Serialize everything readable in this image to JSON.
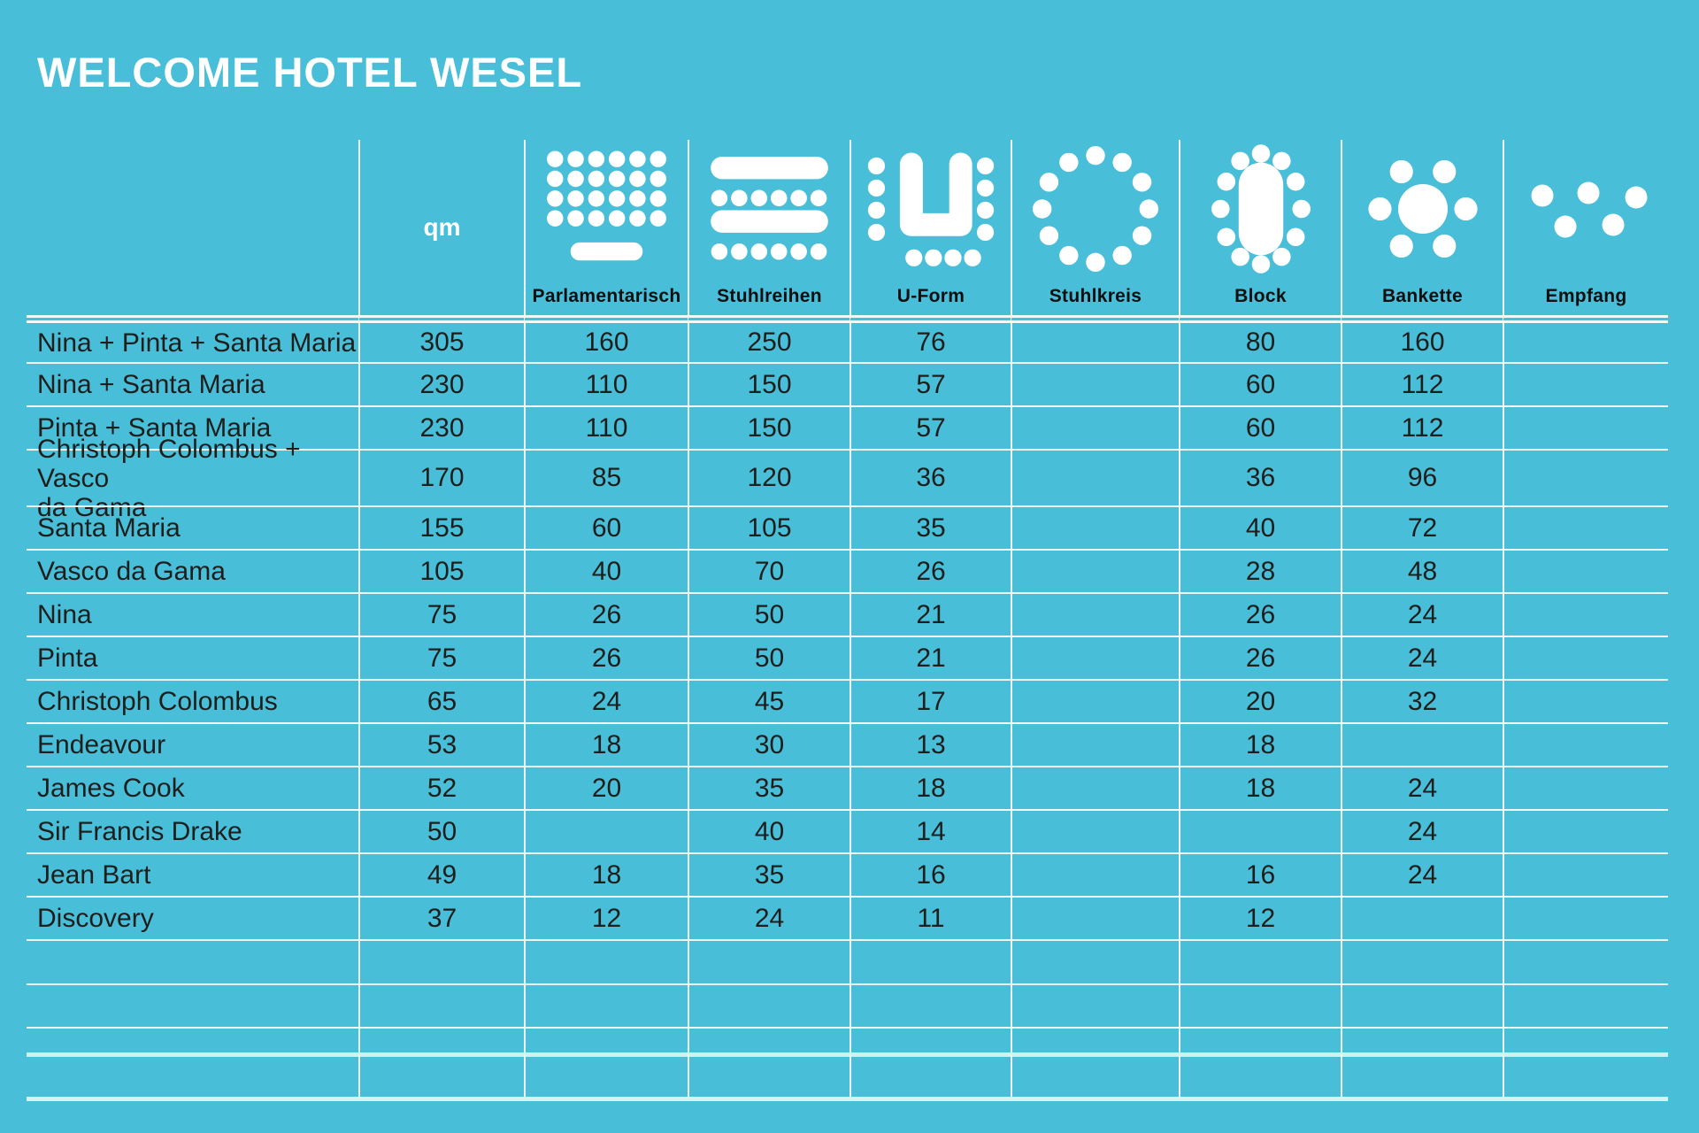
{
  "title": "WELCOME HOTEL WESEL",
  "colors": {
    "background": "#49BED8",
    "title": "#FFFFFF",
    "text": "#1E1E1C",
    "grid_line": "#FFFFFF"
  },
  "header": {
    "qm_label": "qm",
    "columns": [
      {
        "key": "parlamentarisch",
        "label": "Parlamentarisch",
        "icon": "parliamentary-seating-icon"
      },
      {
        "key": "stuhlreihen",
        "label": "Stuhlreihen",
        "icon": "chair-rows-icon"
      },
      {
        "key": "uform",
        "label": "U-Form",
        "icon": "u-shape-seating-icon"
      },
      {
        "key": "stuhlkreis",
        "label": "Stuhlkreis",
        "icon": "chair-circle-icon"
      },
      {
        "key": "block",
        "label": "Block",
        "icon": "block-table-icon"
      },
      {
        "key": "bankette",
        "label": "Bankette",
        "icon": "banquet-round-table-icon"
      },
      {
        "key": "empfang",
        "label": "Empfang",
        "icon": "reception-scattered-icon"
      }
    ]
  },
  "empty_rows": 4,
  "chart_data": {
    "type": "table",
    "title": "WELCOME HOTEL WESEL",
    "columns": [
      "qm",
      "Parlamentarisch",
      "Stuhlreihen",
      "U-Form",
      "Stuhlkreis",
      "Block",
      "Bankette",
      "Empfang"
    ],
    "rows": [
      {
        "name": "Nina + Pinta + Santa Maria",
        "qm": 305,
        "parlamentarisch": 160,
        "stuhlreihen": 250,
        "uform": 76,
        "stuhlkreis": null,
        "block": 80,
        "bankette": 160,
        "empfang": null
      },
      {
        "name": "Nina + Santa Maria",
        "qm": 230,
        "parlamentarisch": 110,
        "stuhlreihen": 150,
        "uform": 57,
        "stuhlkreis": null,
        "block": 60,
        "bankette": 112,
        "empfang": null
      },
      {
        "name": "Pinta + Santa Maria",
        "qm": 230,
        "parlamentarisch": 110,
        "stuhlreihen": 150,
        "uform": 57,
        "stuhlkreis": null,
        "block": 60,
        "bankette": 112,
        "empfang": null
      },
      {
        "name": "Christoph Colombus + Vasco\nda Gama",
        "qm": 170,
        "parlamentarisch": 85,
        "stuhlreihen": 120,
        "uform": 36,
        "stuhlkreis": null,
        "block": 36,
        "bankette": 96,
        "empfang": null
      },
      {
        "name": "Santa Maria",
        "qm": 155,
        "parlamentarisch": 60,
        "stuhlreihen": 105,
        "uform": 35,
        "stuhlkreis": null,
        "block": 40,
        "bankette": 72,
        "empfang": null
      },
      {
        "name": "Vasco da Gama",
        "qm": 105,
        "parlamentarisch": 40,
        "stuhlreihen": 70,
        "uform": 26,
        "stuhlkreis": null,
        "block": 28,
        "bankette": 48,
        "empfang": null
      },
      {
        "name": "Nina",
        "qm": 75,
        "parlamentarisch": 26,
        "stuhlreihen": 50,
        "uform": 21,
        "stuhlkreis": null,
        "block": 26,
        "bankette": 24,
        "empfang": null
      },
      {
        "name": "Pinta",
        "qm": 75,
        "parlamentarisch": 26,
        "stuhlreihen": 50,
        "uform": 21,
        "stuhlkreis": null,
        "block": 26,
        "bankette": 24,
        "empfang": null
      },
      {
        "name": "Christoph Colombus",
        "qm": 65,
        "parlamentarisch": 24,
        "stuhlreihen": 45,
        "uform": 17,
        "stuhlkreis": null,
        "block": 20,
        "bankette": 32,
        "empfang": null
      },
      {
        "name": "Endeavour",
        "qm": 53,
        "parlamentarisch": 18,
        "stuhlreihen": 30,
        "uform": 13,
        "stuhlkreis": null,
        "block": 18,
        "bankette": null,
        "empfang": null
      },
      {
        "name": "James Cook",
        "qm": 52,
        "parlamentarisch": 20,
        "stuhlreihen": 35,
        "uform": 18,
        "stuhlkreis": null,
        "block": 18,
        "bankette": 24,
        "empfang": null
      },
      {
        "name": "Sir Francis Drake",
        "qm": 50,
        "parlamentarisch": null,
        "stuhlreihen": 40,
        "uform": 14,
        "stuhlkreis": null,
        "block": null,
        "bankette": 24,
        "empfang": null
      },
      {
        "name": "Jean Bart",
        "qm": 49,
        "parlamentarisch": 18,
        "stuhlreihen": 35,
        "uform": 16,
        "stuhlkreis": null,
        "block": 16,
        "bankette": 24,
        "empfang": null
      },
      {
        "name": "Discovery",
        "qm": 37,
        "parlamentarisch": 12,
        "stuhlreihen": 24,
        "uform": 11,
        "stuhlkreis": null,
        "block": 12,
        "bankette": null,
        "empfang": null
      }
    ]
  }
}
